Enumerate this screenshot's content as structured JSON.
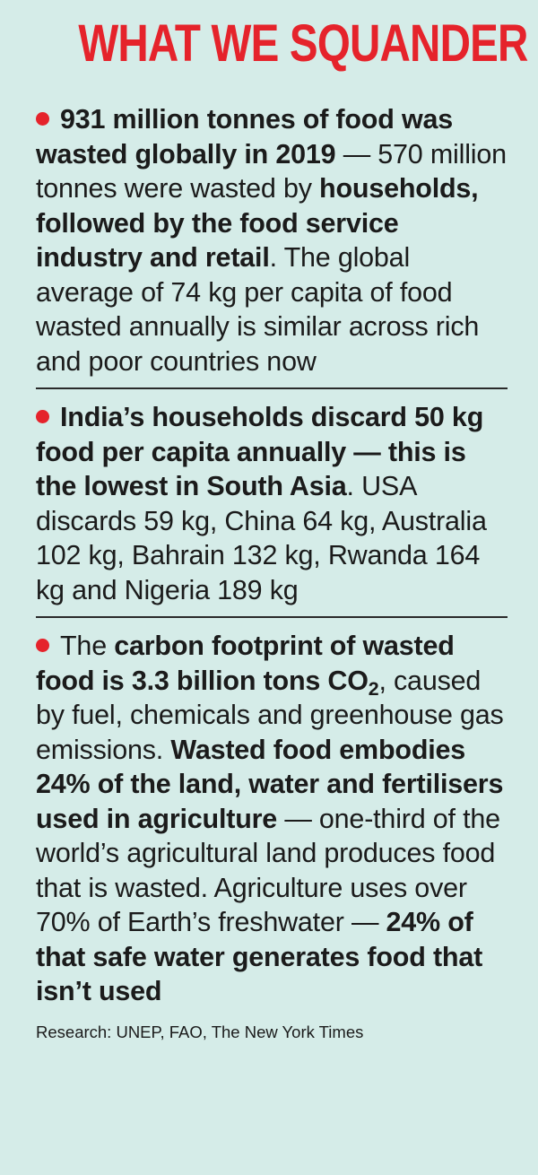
{
  "title": "WHAT WE SQUANDER",
  "sections": [
    {
      "bold_1": "931 million tonnes of food was wasted globally in 2019",
      "text_1": " — 570 million tonnes were wasted by ",
      "bold_2": "households, followed by the food service industry and retail",
      "text_2": ". The global average of 74 kg per capita of food wasted annually is similar across rich and poor countries now"
    },
    {
      "bold_1": "India’s households discard 50 kg food per capita annually — this is the lowest in South Asia",
      "text_1": ". USA discards 59 kg, China 64 kg, Australia 102 kg, Bahrain 132 kg, Rwanda 164 kg and Nigeria 189 kg"
    },
    {
      "text_1": "The ",
      "bold_1": "carbon footprint of wasted food is 3.3 billion tons CO",
      "bold_1_sub": "2",
      "text_2": ", caused by fuel, chemicals and greenhouse gas emissions. ",
      "bold_2": "Wasted food embodies 24% of the land, water and fertilisers used in agriculture",
      "text_3": " — one-third of the world’s agricultural land produces food that is wasted. Agriculture uses over 70% of Earth’s freshwater — ",
      "bold_3": "24% of that safe water generates food that isn’t used"
    }
  ],
  "credit": "Research: UNEP, FAO, The New York Times",
  "colors": {
    "background": "#d5ece8",
    "accent": "#e5232b",
    "text": "#1b1b1b"
  }
}
